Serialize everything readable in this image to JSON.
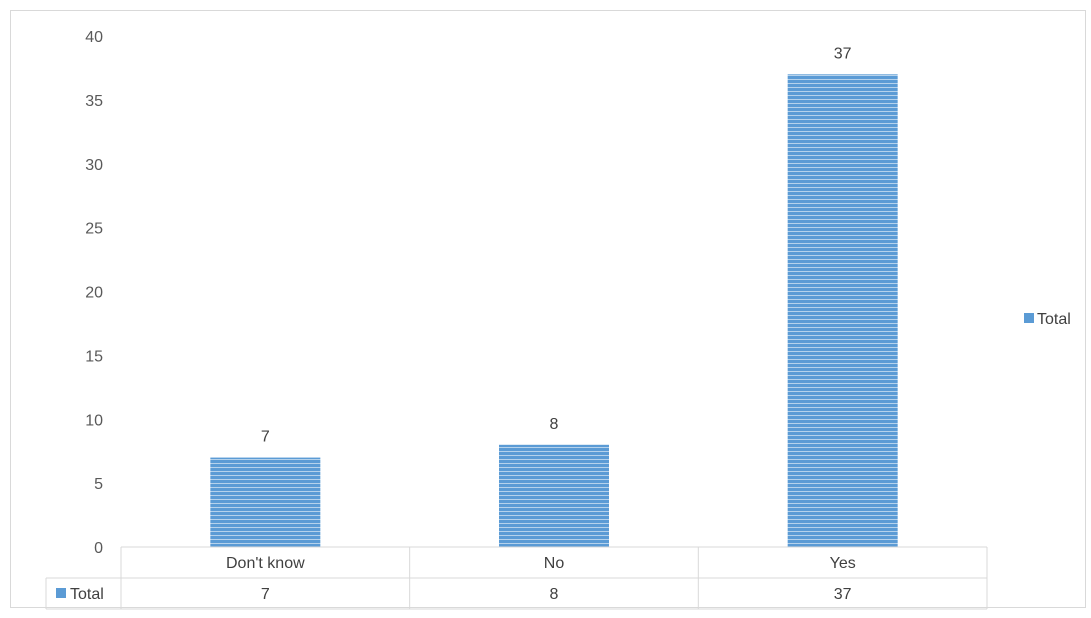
{
  "chart_data": {
    "type": "bar",
    "categories": [
      "Don't know",
      "No",
      "Yes"
    ],
    "series": [
      {
        "name": "Total",
        "values": [
          7,
          8,
          37
        ]
      }
    ],
    "ylim": [
      0,
      40
    ],
    "yticks": [
      0,
      5,
      10,
      15,
      20,
      25,
      30,
      35,
      40
    ],
    "title": "",
    "xlabel": "",
    "ylabel": "",
    "grid": false,
    "legend_position": "right",
    "data_table": true,
    "bar_fill_pattern": "horizontal-stripes",
    "colors": {
      "bar_fill": "#5b9bd5",
      "bar_stripe": "#ffffff",
      "legend_marker": "#5b9bd5",
      "table_border": "#d9d9d9",
      "axis_line": "#d9d9d9",
      "tick_text": "#595959",
      "label_text": "#404040"
    }
  }
}
